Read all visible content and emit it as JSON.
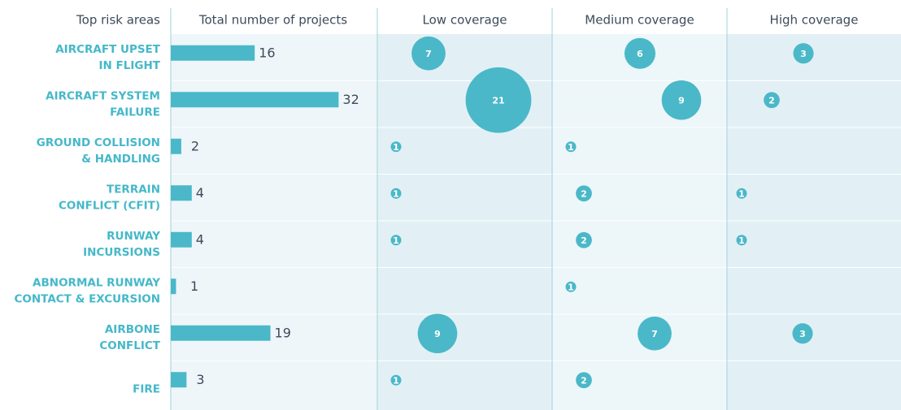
{
  "chart_data": {
    "type": "bar",
    "category_header": "Top risk areas",
    "categories": [
      [
        "AIRCRAFT UPSET",
        "IN FLIGHT"
      ],
      [
        "AIRCRAFT SYSTEM",
        "FAILURE"
      ],
      [
        "GROUND COLLISION",
        "& HANDLING"
      ],
      [
        "TERRAIN",
        "CONFLICT (CFIT)"
      ],
      [
        "RUNWAY",
        "INCURSIONS"
      ],
      [
        "ABNORMAL RUNWAY",
        "CONTACT & EXCURSION"
      ],
      [
        "AIRBONE",
        "CONFLICT"
      ],
      [
        "FIRE"
      ]
    ],
    "series": [
      {
        "name": "Total number of projects",
        "color": "#4ab8c8",
        "values": [
          16,
          32,
          2,
          4,
          4,
          1,
          19,
          3
        ]
      },
      {
        "name": "Low coverage",
        "color": "#4ab8c8",
        "type": "bubble",
        "values": [
          7,
          21,
          1,
          1,
          1,
          null,
          9,
          1
        ]
      },
      {
        "name": "Medium coverage",
        "color": "#4ab8c8",
        "type": "bubble",
        "values": [
          6,
          9,
          1,
          2,
          2,
          1,
          7,
          2
        ]
      },
      {
        "name": "High coverage",
        "color": "#4ab8c8",
        "type": "bubble",
        "values": [
          3,
          2,
          null,
          1,
          1,
          null,
          3,
          null
        ]
      }
    ]
  }
}
